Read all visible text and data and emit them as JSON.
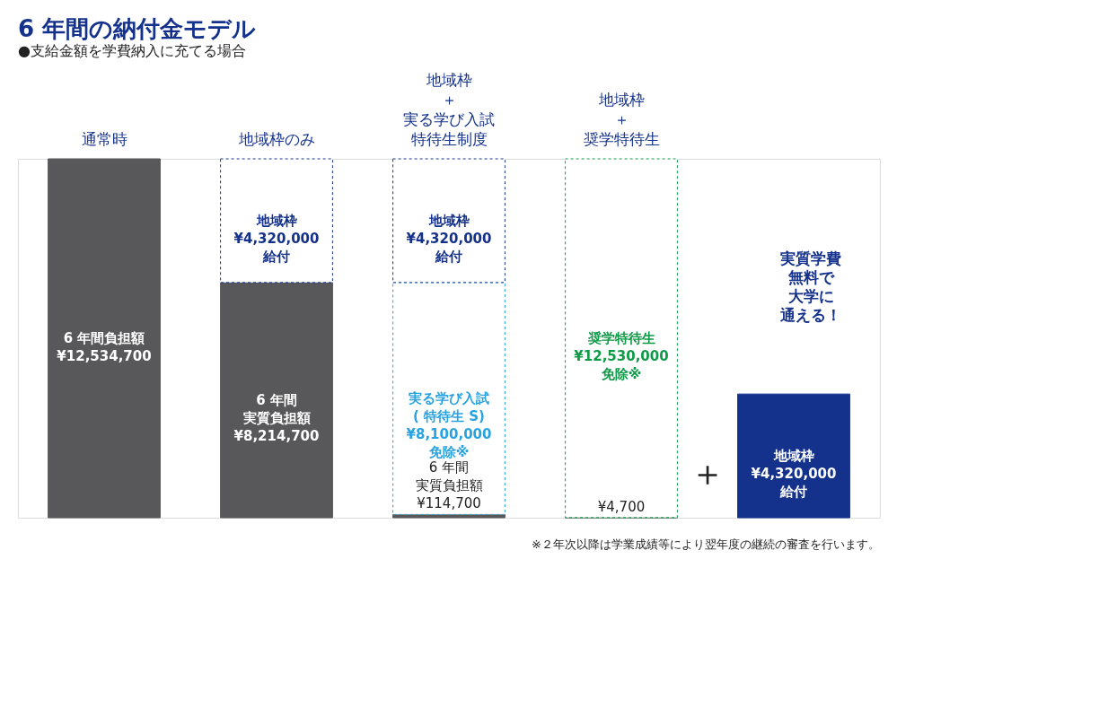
{
  "chart_data": {
    "type": "bar",
    "stacked": true,
    "title": "6 年間の納付金モデル",
    "subtitle": "●支給金額を学費納入に充てる場合",
    "categories": [
      "通常時",
      "地域枠のみ",
      [
        "地域枠",
        "＋",
        "実る学び入試",
        "特待生制度"
      ],
      [
        "地域枠",
        "＋",
        "奨学特待生"
      ],
      null
    ],
    "series": [
      {
        "color": "#58585a",
        "values": [
          12534700,
          8214700,
          114700,
          4700,
          null
        ],
        "value_labels": [
          [
            "6 年間負担額",
            "¥12,534,700"
          ],
          [
            "6 年間",
            "実質負担額",
            "¥8,214,700"
          ],
          [
            "6 年間",
            "実質負担額",
            "¥114,700"
          ],
          "¥4,700",
          null
        ]
      },
      {
        "color": "#29a3e0",
        "line_style": "dashed",
        "values": [
          null,
          null,
          8100000,
          null,
          null
        ],
        "value_labels": [
          null,
          null,
          [
            "実る学び入試",
            "( 特待生 S)",
            "¥8,100,000",
            "免除※"
          ],
          null,
          null
        ]
      },
      {
        "color": "#0f9a48",
        "line_style": "dashed",
        "values": [
          null,
          null,
          null,
          12530000,
          null
        ],
        "value_labels": [
          null,
          null,
          null,
          [
            "奨学特待生",
            "¥12,530,000",
            "免除※"
          ],
          null
        ]
      },
      {
        "color": "#14318c",
        "line_style": "dashed",
        "values": [
          null,
          4320000,
          4320000,
          null,
          null
        ],
        "value_labels": [
          null,
          [
            "地域枠",
            "¥4,320,000",
            "給付"
          ],
          [
            "地域枠",
            "¥4,320,000",
            "給付"
          ],
          null,
          null
        ]
      },
      {
        "color": "#14318c",
        "values": [
          null,
          null,
          null,
          null,
          4320000
        ],
        "value_labels": [
          null,
          null,
          null,
          null,
          [
            "地域枠",
            "¥4,320,000",
            "給付"
          ]
        ]
      }
    ],
    "annotations": [
      "※２年次以降は学業成績等により翌年度の継続の審査を行います。",
      "＋",
      [
        "実質学費",
        "無料で",
        "大学に",
        "通える！"
      ]
    ],
    "grid": false,
    "tick_labels": "x"
  }
}
